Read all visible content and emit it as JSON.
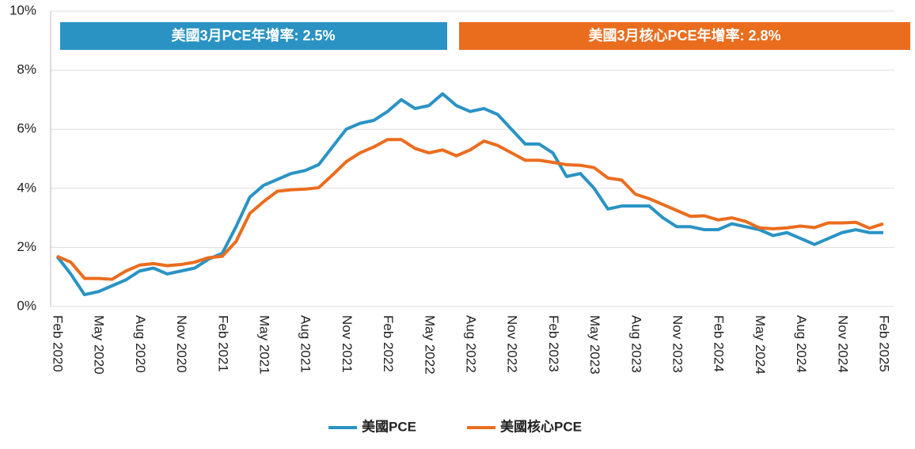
{
  "chart_data": {
    "type": "line",
    "annotations": [
      "美國3月PCE年增率: 2.5%",
      "美國3月核心PCE年增率: 2.8%"
    ],
    "categories": [
      "Feb 2020",
      null,
      null,
      "May 2020",
      null,
      null,
      "Aug 2020",
      null,
      null,
      "Nov 2020",
      null,
      null,
      "Feb 2021",
      null,
      null,
      "May 2021",
      null,
      null,
      "Aug 2021",
      null,
      null,
      "Nov 2021",
      null,
      null,
      "Feb 2022",
      null,
      null,
      "May 2022",
      null,
      null,
      "Aug 2022",
      null,
      null,
      "Nov 2022",
      null,
      null,
      "Feb 2023",
      null,
      null,
      "May 2023",
      null,
      null,
      "Aug 2023",
      null,
      null,
      "Nov 2023",
      null,
      null,
      "Feb 2024",
      null,
      null,
      "May 2024",
      null,
      null,
      "Aug 2024",
      null,
      null,
      "Nov 2024",
      null,
      null,
      "Feb 2025"
    ],
    "series": [
      {
        "name": "美國PCE",
        "color": "#2a93c4",
        "values": [
          1.7,
          1.1,
          0.4,
          0.5,
          0.7,
          0.9,
          1.2,
          1.3,
          1.1,
          1.2,
          1.3,
          1.6,
          1.8,
          2.7,
          3.7,
          4.1,
          4.3,
          4.5,
          4.6,
          4.8,
          5.4,
          6.0,
          6.2,
          6.3,
          6.6,
          7.0,
          6.7,
          6.8,
          7.2,
          6.8,
          6.6,
          6.7,
          6.5,
          6.0,
          5.5,
          5.5,
          5.2,
          4.4,
          4.5,
          4.0,
          3.3,
          3.4,
          3.4,
          3.4,
          3.0,
          2.7,
          2.7,
          2.6,
          2.6,
          2.8,
          2.7,
          2.6,
          2.4,
          2.5,
          2.3,
          2.1,
          2.3,
          2.5,
          2.6,
          2.5,
          2.5
        ]
      },
      {
        "name": "美國核心PCE",
        "color": "#ea6d1e",
        "values": [
          1.7,
          1.5,
          0.95,
          0.95,
          0.92,
          1.2,
          1.4,
          1.45,
          1.38,
          1.42,
          1.5,
          1.65,
          1.7,
          2.2,
          3.15,
          3.55,
          3.9,
          3.95,
          3.97,
          4.02,
          4.45,
          4.9,
          5.2,
          5.4,
          5.65,
          5.65,
          5.35,
          5.2,
          5.3,
          5.1,
          5.3,
          5.6,
          5.45,
          5.2,
          4.95,
          4.95,
          4.88,
          4.8,
          4.78,
          4.7,
          4.35,
          4.28,
          3.8,
          3.65,
          3.45,
          3.25,
          3.05,
          3.07,
          2.93,
          3.0,
          2.88,
          2.66,
          2.63,
          2.66,
          2.72,
          2.67,
          2.83,
          2.83,
          2.85,
          2.65,
          2.8
        ]
      }
    ],
    "ylim": [
      0,
      10
    ],
    "yticks": [
      {
        "value": 0,
        "label": "0%"
      },
      {
        "value": 2,
        "label": "2%"
      },
      {
        "value": 4,
        "label": "4%"
      },
      {
        "value": 6,
        "label": "6%"
      },
      {
        "value": 8,
        "label": "8%"
      },
      {
        "value": 10,
        "label": "10%"
      }
    ],
    "grid": true,
    "legend": "bottom"
  }
}
